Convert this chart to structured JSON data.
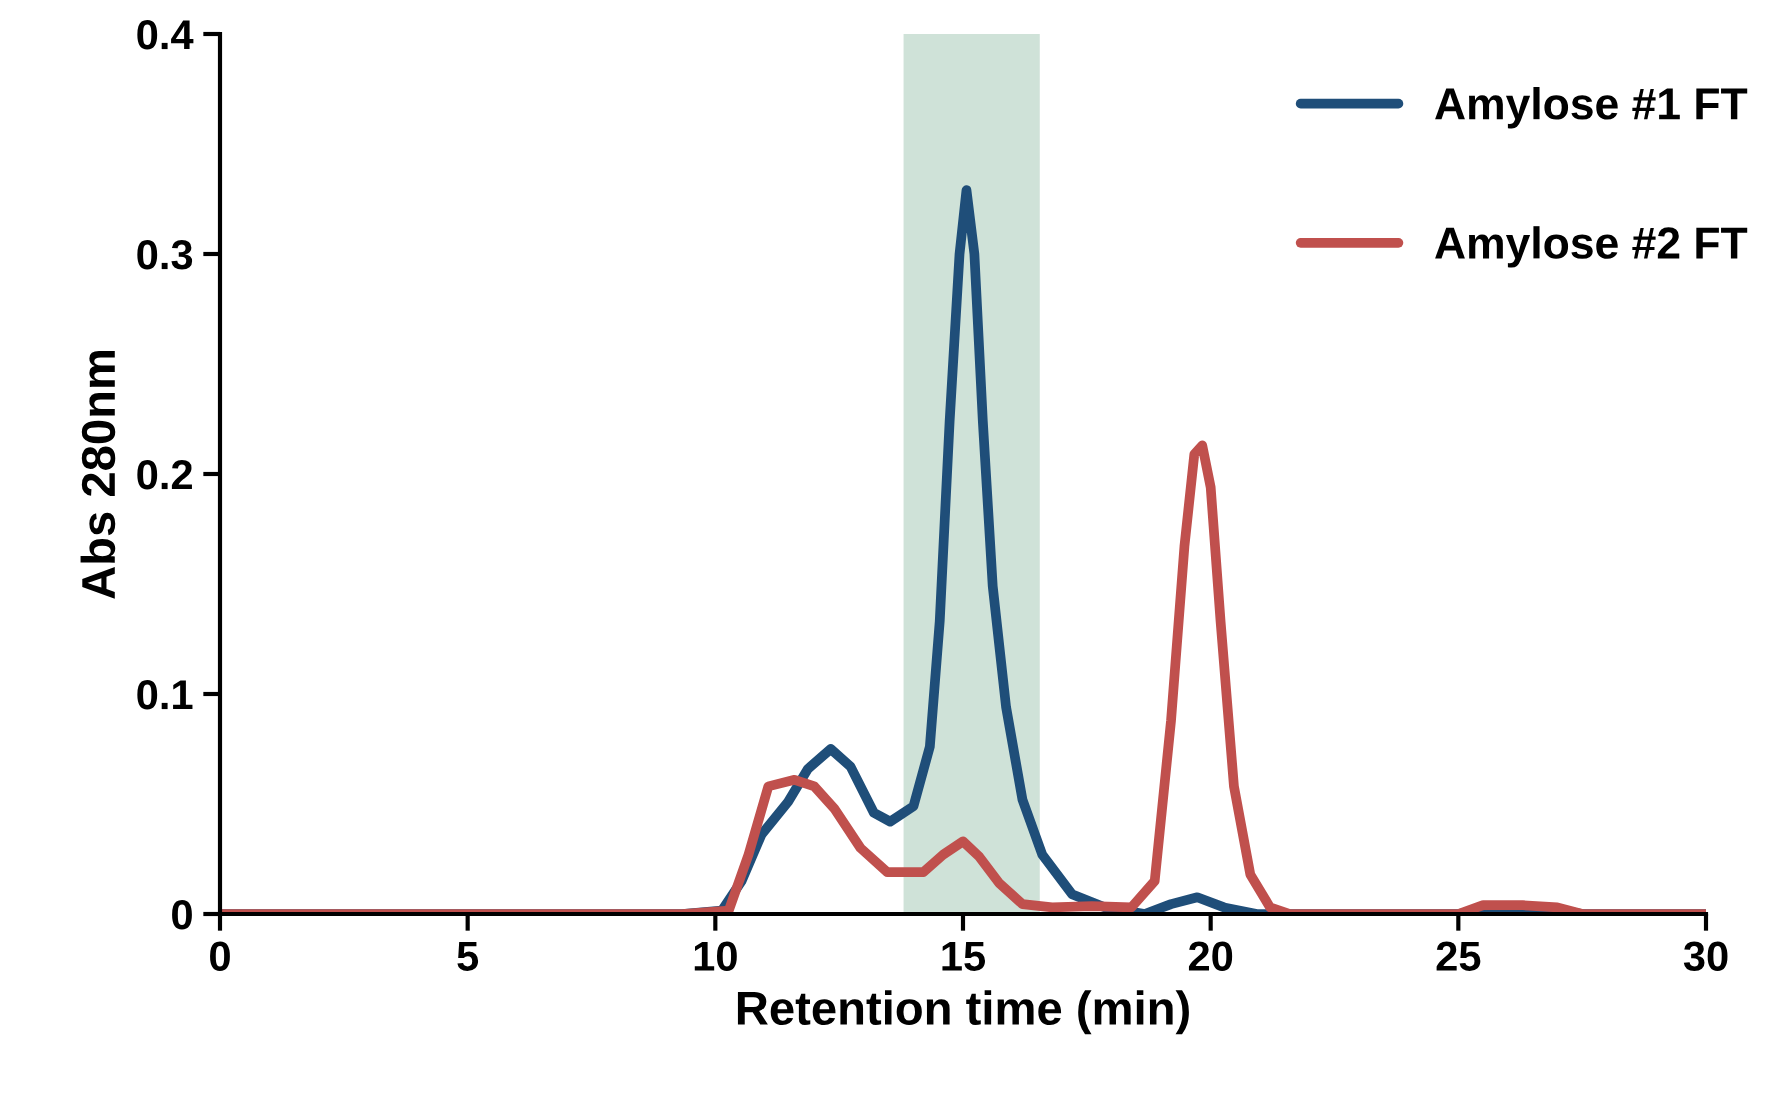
{
  "chart_data": {
    "type": "line",
    "xlabel": "Retention time (min)",
    "ylabel": "Abs 280nm",
    "xlim": [
      0,
      30
    ],
    "xticks": [
      0,
      5,
      10,
      15,
      20,
      25,
      30
    ],
    "ylim": [
      0,
      0.4
    ],
    "yticks": [
      0,
      0.1,
      0.2,
      0.3,
      0.4
    ],
    "grid": false,
    "legend": "top right",
    "marker": "none",
    "line_style": "solid",
    "bands": [
      {
        "axis": "x",
        "from": 13.8,
        "to": 16.55,
        "color": "#cfe2d8"
      }
    ],
    "series": [
      {
        "name": "Amylose #1 FT",
        "color": "#1f4e79",
        "x": [
          0,
          9.33,
          10.13,
          10.53,
          10.93,
          11.47,
          11.87,
          12.33,
          12.73,
          13.2,
          13.53,
          14.0,
          14.33,
          14.53,
          14.73,
          14.93,
          15.07,
          15.23,
          15.4,
          15.6,
          15.87,
          16.2,
          16.6,
          17.2,
          17.87,
          18.67,
          19.2,
          19.73,
          20.27,
          20.93,
          25.0,
          25.5,
          26.3,
          27.0,
          27.5,
          30
        ],
        "values": [
          0,
          0,
          0.0015,
          0.015,
          0.036,
          0.051,
          0.066,
          0.075,
          0.067,
          0.046,
          0.042,
          0.049,
          0.076,
          0.133,
          0.224,
          0.3,
          0.329,
          0.3,
          0.224,
          0.149,
          0.094,
          0.052,
          0.027,
          0.009,
          0.003,
          0,
          0.0045,
          0.0076,
          0.003,
          0,
          0,
          0.002,
          0.002,
          0.002,
          0,
          0
        ]
      },
      {
        "name": "Amylose #2 FT",
        "color": "#c0504d",
        "x": [
          0,
          9.33,
          10.27,
          10.67,
          11.07,
          11.6,
          12.0,
          12.4,
          12.93,
          13.47,
          14.2,
          14.6,
          15.0,
          15.33,
          15.73,
          16.2,
          16.8,
          17.6,
          18.4,
          18.87,
          19.2,
          19.47,
          19.67,
          19.83,
          20.0,
          20.2,
          20.47,
          20.8,
          21.2,
          21.6,
          25.0,
          25.5,
          26.3,
          27.0,
          27.5,
          30
        ],
        "values": [
          0,
          0,
          0.0015,
          0.027,
          0.058,
          0.061,
          0.058,
          0.048,
          0.03,
          0.019,
          0.019,
          0.027,
          0.033,
          0.026,
          0.014,
          0.0045,
          0.003,
          0.0036,
          0.003,
          0.015,
          0.088,
          0.167,
          0.209,
          0.213,
          0.194,
          0.133,
          0.058,
          0.018,
          0.003,
          0,
          0,
          0.004,
          0.004,
          0.003,
          0,
          0
        ]
      }
    ]
  }
}
